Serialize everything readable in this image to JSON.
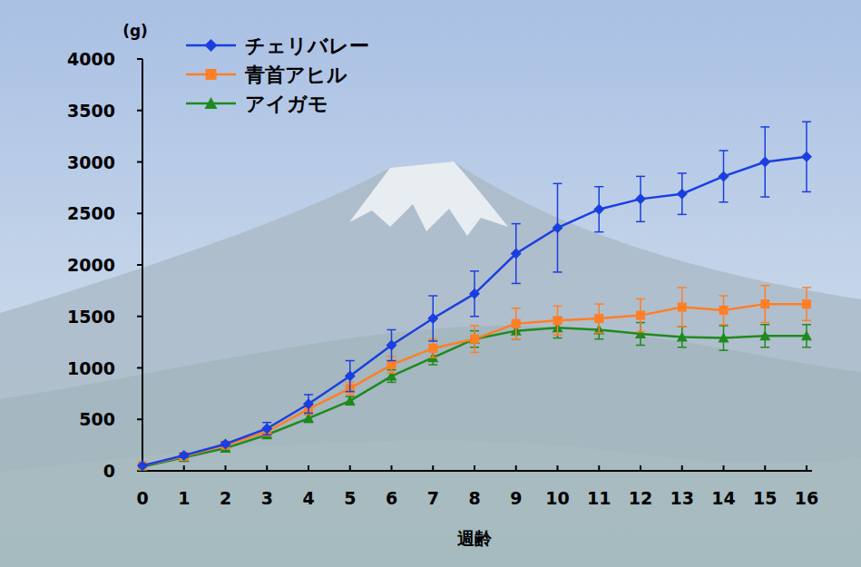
{
  "chart_data": {
    "type": "line",
    "x_label": "週齢",
    "y_label": "(g)",
    "x": [
      0,
      1,
      2,
      3,
      4,
      5,
      6,
      7,
      8,
      9,
      10,
      11,
      12,
      13,
      14,
      15,
      16
    ],
    "xlim": [
      0,
      16
    ],
    "xticks": [
      0,
      1,
      2,
      3,
      4,
      5,
      6,
      7,
      8,
      9,
      10,
      11,
      12,
      13,
      14,
      15,
      16
    ],
    "ylim": [
      0,
      4000
    ],
    "yticks": [
      0,
      500,
      1000,
      1500,
      2000,
      2500,
      3000,
      3500,
      4000
    ],
    "grid": false,
    "legend": "upper left",
    "series": [
      {
        "name": "チェリバレー",
        "color": "#1a3fe0",
        "marker": "diamond",
        "line_style": "solid",
        "values": [
          50,
          150,
          260,
          410,
          650,
          920,
          1220,
          1480,
          1720,
          2110,
          2360,
          2540,
          2640,
          2690,
          2860,
          3000,
          3050
        ],
        "errors": [
          10,
          20,
          20,
          60,
          90,
          150,
          150,
          220,
          220,
          290,
          430,
          220,
          220,
          200,
          250,
          340,
          340
        ]
      },
      {
        "name": "青首アヒル",
        "color": "#ff7f27",
        "marker": "square",
        "line_style": "solid",
        "values": [
          50,
          140,
          250,
          380,
          600,
          800,
          1030,
          1190,
          1280,
          1430,
          1460,
          1480,
          1510,
          1590,
          1560,
          1620,
          1620
        ],
        "errors": [
          10,
          20,
          20,
          30,
          50,
          60,
          80,
          90,
          130,
          150,
          140,
          140,
          160,
          190,
          140,
          180,
          160
        ]
      },
      {
        "name": "アイガモ",
        "color": "#1f8a1f",
        "marker": "triangle",
        "line_style": "solid",
        "values": [
          40,
          130,
          220,
          350,
          510,
          680,
          920,
          1100,
          1280,
          1360,
          1390,
          1370,
          1330,
          1300,
          1290,
          1310,
          1310
        ],
        "errors": [
          10,
          20,
          20,
          20,
          40,
          40,
          60,
          70,
          80,
          80,
          100,
          90,
          110,
          100,
          120,
          110,
          110
        ]
      }
    ]
  }
}
